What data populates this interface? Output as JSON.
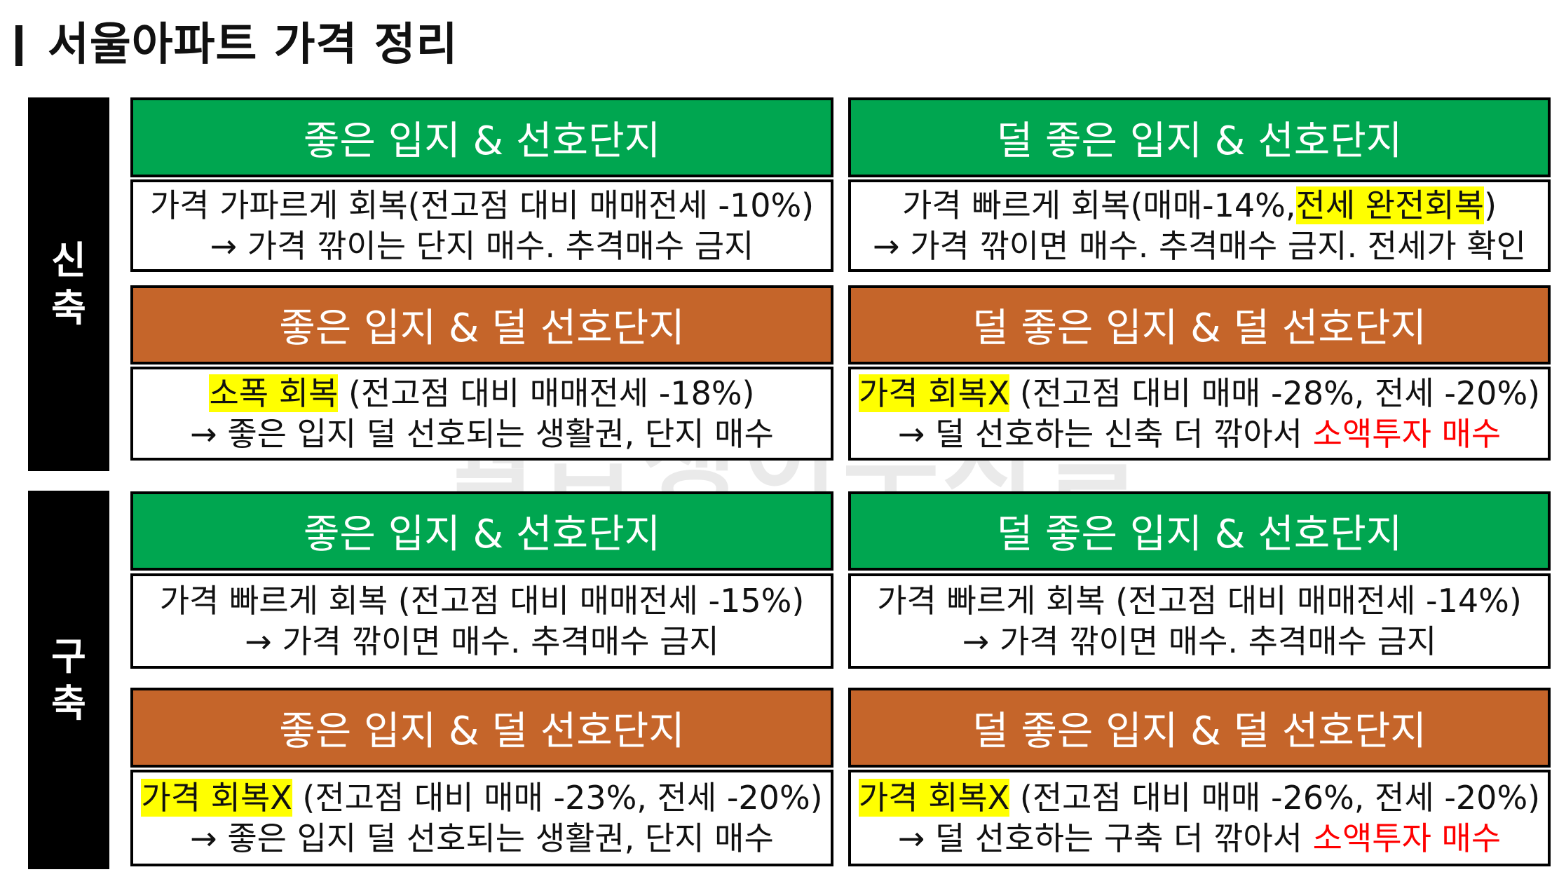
{
  "title": "서울아파트 가격 정리",
  "watermark": "월급쟁이부자들",
  "colors": {
    "green_header": "#00a650",
    "orange_header": "#c5652a",
    "highlight": "#ffff00",
    "emphasis_red": "#ff0000"
  },
  "sections": [
    {
      "label": "신축",
      "cells": [
        {
          "header": "좋은 입지 & 선호단지",
          "header_color": "green",
          "line1": {
            "pre": "가격 가파르게 회복(전고점 대비 매매전세 -10%)"
          },
          "line2": {
            "pre": "→ 가격 깎이는 단지 매수. 추격매수 금지"
          }
        },
        {
          "header": "덜 좋은 입지 & 선호단지",
          "header_color": "green",
          "line1": {
            "pre": "가격 빠르게 회복(매매-14%,",
            "highlight": "전세 완전회복",
            "post": ")"
          },
          "line2": {
            "pre": "→ 가격 깎이면 매수. 추격매수 금지. 전세가 확인"
          }
        },
        {
          "header": "좋은 입지 & 덜 선호단지",
          "header_color": "orange",
          "line1": {
            "highlight": "소폭 회복",
            "post": " (전고점 대비 매매전세 -18%)"
          },
          "line2": {
            "pre": "→ 좋은 입지 덜 선호되는 생활권, 단지 매수"
          }
        },
        {
          "header": "덜 좋은 입지 & 덜 선호단지",
          "header_color": "orange",
          "line1": {
            "highlight": "가격 회복X",
            "post": " (전고점 대비 매매 -28%, 전세 -20%)"
          },
          "line2": {
            "pre": "→ 덜 선호하는 신축 더 깎아서 ",
            "red": "소액투자 매수"
          }
        }
      ]
    },
    {
      "label": "구축",
      "cells": [
        {
          "header": "좋은 입지 & 선호단지",
          "header_color": "green",
          "line1": {
            "pre": "가격 빠르게 회복 (전고점 대비 매매전세 -15%)"
          },
          "line2": {
            "pre": "→ 가격 깎이면 매수. 추격매수 금지"
          }
        },
        {
          "header": "덜 좋은 입지 & 선호단지",
          "header_color": "green",
          "line1": {
            "pre": "가격 빠르게 회복 (전고점 대비 매매전세 -14%)"
          },
          "line2": {
            "pre": "→ 가격 깎이면 매수. 추격매수 금지"
          }
        },
        {
          "header": "좋은 입지 & 덜 선호단지",
          "header_color": "orange",
          "line1": {
            "highlight": "가격 회복X",
            "post": " (전고점 대비 매매 -23%, 전세 -20%)"
          },
          "line2": {
            "pre": "→ 좋은 입지 덜 선호되는 생활권, 단지 매수"
          }
        },
        {
          "header": "덜 좋은 입지 & 덜 선호단지",
          "header_color": "orange",
          "line1": {
            "highlight": "가격 회복X",
            "post": " (전고점 대비 매매 -26%, 전세 -20%)"
          },
          "line2": {
            "pre": "→ 덜 선호하는 구축 더 깎아서 ",
            "red": "소액투자 매수"
          }
        }
      ]
    }
  ]
}
